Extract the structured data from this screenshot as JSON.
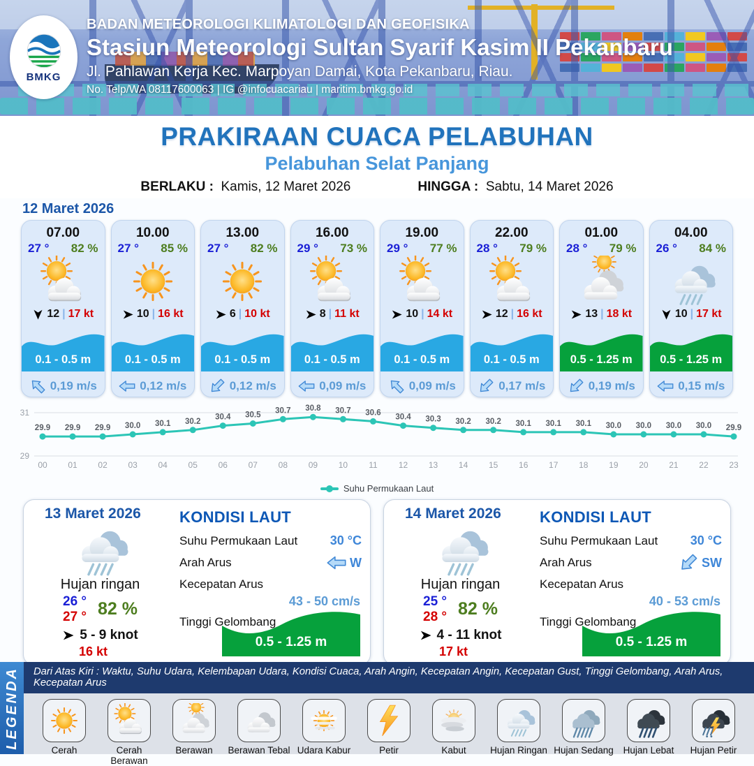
{
  "header": {
    "logo_label": "BMKG",
    "agency": "BADAN METEOROLOGI KLIMATOLOGI DAN GEOFISIKA",
    "station": "Stasiun Meteorologi Sultan Syarif Kasim II Pekanbaru",
    "address": "Jl. Pahlawan Kerja Kec. Marpoyan Damai, Kota Pekanbaru, Riau.",
    "contact": "No. Telp/WA 08117600063 | IG @infocuacariau | maritim.bmkg.go.id"
  },
  "title": {
    "main": "PRAKIRAAN CUACA PELABUHAN",
    "subtitle": "Pelabuhan Selat Panjang",
    "berlaku_label": "BERLAKU :",
    "berlaku_value": "Kamis, 12 Maret 2026",
    "hingga_label": "HINGGA :",
    "hingga_value": "Sabtu, 14 Maret 2026"
  },
  "forecast": {
    "date_label": "12 Maret 2026",
    "cards": [
      {
        "time": "07.00",
        "temp": "27 °",
        "humidity": "82 %",
        "icon": "cerah-berawan",
        "wind_dir": "down",
        "wind_speed": "12",
        "gust": "17 kt",
        "wave": "0.1 - 0.5 m",
        "wave_color": "cyan",
        "current_dir": "up-left",
        "current_speed": "0,19 m/s"
      },
      {
        "time": "10.00",
        "temp": "27 °",
        "humidity": "85 %",
        "icon": "cerah",
        "wind_dir": "right",
        "wind_speed": "10",
        "gust": "16 kt",
        "wave": "0.1 - 0.5 m",
        "wave_color": "cyan",
        "current_dir": "left",
        "current_speed": "0,12 m/s"
      },
      {
        "time": "13.00",
        "temp": "27 °",
        "humidity": "82 %",
        "icon": "cerah",
        "wind_dir": "right",
        "wind_speed": "6",
        "gust": "10 kt",
        "wave": "0.1 - 0.5 m",
        "wave_color": "cyan",
        "current_dir": "down-left",
        "current_speed": "0,12 m/s"
      },
      {
        "time": "16.00",
        "temp": "29 °",
        "humidity": "73 %",
        "icon": "cerah-berawan",
        "wind_dir": "right",
        "wind_speed": "8",
        "gust": "11 kt",
        "wave": "0.1 - 0.5 m",
        "wave_color": "cyan",
        "current_dir": "left",
        "current_speed": "0,09 m/s"
      },
      {
        "time": "19.00",
        "temp": "29 °",
        "humidity": "77 %",
        "icon": "cerah-berawan",
        "wind_dir": "right",
        "wind_speed": "10",
        "gust": "14 kt",
        "wave": "0.1 - 0.5 m",
        "wave_color": "cyan",
        "current_dir": "up-left",
        "current_speed": "0,09 m/s"
      },
      {
        "time": "22.00",
        "temp": "28 °",
        "humidity": "79 %",
        "icon": "cerah-berawan",
        "wind_dir": "right",
        "wind_speed": "12",
        "gust": "16 kt",
        "wave": "0.1 - 0.5 m",
        "wave_color": "cyan",
        "current_dir": "down-left",
        "current_speed": "0,17 m/s"
      },
      {
        "time": "01.00",
        "temp": "28 °",
        "humidity": "79 %",
        "icon": "berawan",
        "wind_dir": "right",
        "wind_speed": "13",
        "gust": "18 kt",
        "wave": "0.5 - 1.25 m",
        "wave_color": "green",
        "current_dir": "down-left",
        "current_speed": "0,19 m/s"
      },
      {
        "time": "04.00",
        "temp": "26 °",
        "humidity": "84 %",
        "icon": "hujan-ringan",
        "wind_dir": "down",
        "wind_speed": "10",
        "gust": "17 kt",
        "wave": "0.5 - 1.25 m",
        "wave_color": "green",
        "current_dir": "left",
        "current_speed": "0,15 m/s"
      }
    ]
  },
  "chart_data": {
    "type": "line",
    "legend": "Suhu Permukaan Laut",
    "hours": [
      "00",
      "01",
      "02",
      "03",
      "04",
      "05",
      "06",
      "07",
      "08",
      "09",
      "10",
      "11",
      "12",
      "13",
      "14",
      "15",
      "16",
      "17",
      "18",
      "19",
      "20",
      "21",
      "22",
      "23"
    ],
    "values": [
      29.9,
      29.9,
      29.9,
      30.0,
      30.1,
      30.2,
      30.4,
      30.5,
      30.7,
      30.8,
      30.7,
      30.6,
      30.4,
      30.3,
      30.2,
      30.2,
      30.1,
      30.1,
      30.1,
      30.0,
      30.0,
      30.0,
      30.0,
      29.9
    ],
    "ylim": [
      29,
      31
    ],
    "yticks": [
      29,
      31
    ],
    "line_color": "#2cc5b6",
    "grid": true,
    "legend_position": "bottom"
  },
  "sea_labels": {
    "title": "KONDISI LAUT",
    "sst": "Suhu Permukaan Laut",
    "arah": "Arah Arus",
    "kecepatan": "Kecepatan Arus",
    "tinggi": "Tinggi Gelombang"
  },
  "day_cards": [
    {
      "date": "13 Maret 2026",
      "icon": "hujan-ringan",
      "condition": "Hujan ringan",
      "temp_min": "26 °",
      "temp_max": "27 °",
      "humidity": "82 %",
      "wind_range": "5 - 9 knot",
      "gust": "16 kt",
      "sst": "30 °C",
      "current_dir_label": "W",
      "current_dir": "left",
      "current_speed": "43  - 50 cm/s",
      "wave": "0.5 - 1.25 m"
    },
    {
      "date": "14 Maret 2026",
      "icon": "hujan-ringan",
      "condition": "Hujan ringan",
      "temp_min": "25 °",
      "temp_max": "28 °",
      "humidity": "82 %",
      "wind_range": "4  - 11 knot",
      "gust": "17 kt",
      "sst": "30 °C",
      "current_dir_label": "SW",
      "current_dir": "down-left",
      "current_speed": "40  - 53 cm/s",
      "wave": "0.5 - 1.25 m"
    }
  ],
  "legend": {
    "title": "LEGENDA",
    "note": "Dari Atas Kiri : Waktu, Suhu Udara, Kelembapan Udara, Kondisi Cuaca, Arah Angin, Kecepatan Angin, Kecepatan Gust, Tinggi Gelombang, Arah Arus, Kecepatan Arus",
    "items": [
      {
        "label": "Cerah",
        "icon": "cerah"
      },
      {
        "label": "Cerah Berawan",
        "icon": "cerah-berawan"
      },
      {
        "label": "Berawan",
        "icon": "berawan"
      },
      {
        "label": "Berawan Tebal",
        "icon": "berawan-tebal"
      },
      {
        "label": "Udara Kabur",
        "icon": "udara-kabur"
      },
      {
        "label": "Petir",
        "icon": "petir"
      },
      {
        "label": "Kabut",
        "icon": "kabut"
      },
      {
        "label": "Hujan Ringan",
        "icon": "hujan-ringan"
      },
      {
        "label": "Hujan Sedang",
        "icon": "hujan-sedang"
      },
      {
        "label": "Hujan Lebat",
        "icon": "hujan-lebat"
      },
      {
        "label": "Hujan Petir",
        "icon": "hujan-petir"
      }
    ]
  },
  "colors": {
    "wave_low": "#29a8e3",
    "wave_mid": "#06a13c",
    "sst_line": "#2cc5b6",
    "title_blue": "#2173bc",
    "navy_bar": "#1e3a6e"
  }
}
